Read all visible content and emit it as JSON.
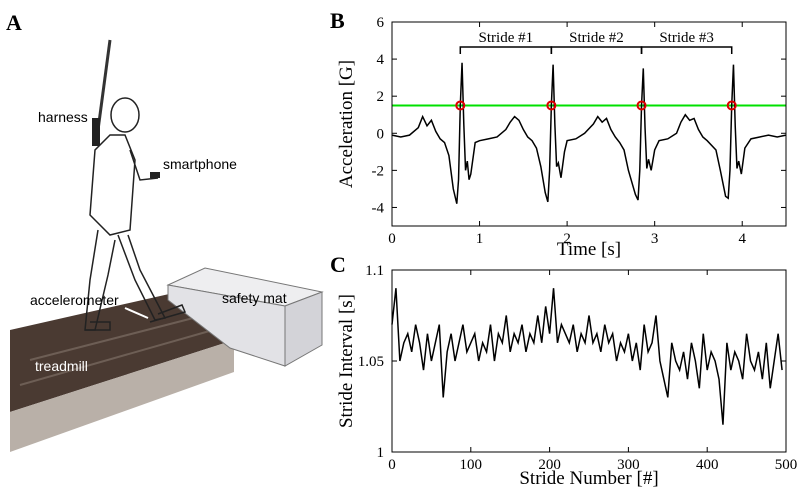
{
  "illustration": {
    "panel": "A",
    "labels": {
      "harness": "harness",
      "smartphone": "smartphone",
      "accelerometer": "accelerometer",
      "treadmill": "treadmill",
      "mat": "safety mat"
    }
  },
  "chart_data": [
    {
      "type": "line",
      "panel": "B",
      "xlabel": "Time [s]",
      "ylabel": "Acceleration [G]",
      "x": [
        0,
        0.1,
        0.2,
        0.3,
        0.35,
        0.4,
        0.45,
        0.5,
        0.55,
        0.6,
        0.65,
        0.7,
        0.74,
        0.76,
        0.78,
        0.8,
        0.82,
        0.84,
        0.86,
        0.88,
        0.9,
        0.95,
        1.0,
        1.1,
        1.2,
        1.3,
        1.35,
        1.4,
        1.45,
        1.5,
        1.55,
        1.6,
        1.65,
        1.7,
        1.75,
        1.78,
        1.8,
        1.82,
        1.84,
        1.86,
        1.88,
        1.9,
        1.93,
        1.97,
        2.0,
        2.1,
        2.2,
        2.3,
        2.35,
        2.4,
        2.45,
        2.5,
        2.55,
        2.6,
        2.65,
        2.7,
        2.78,
        2.81,
        2.83,
        2.85,
        2.87,
        2.89,
        2.91,
        2.93,
        2.96,
        3.0,
        3.05,
        3.15,
        3.25,
        3.3,
        3.35,
        3.4,
        3.45,
        3.5,
        3.55,
        3.6,
        3.7,
        3.75,
        3.81,
        3.84,
        3.86,
        3.88,
        3.9,
        3.92,
        3.94,
        3.96,
        3.99,
        4.03,
        4.1,
        4.2,
        4.3,
        4.4,
        4.5
      ],
      "series": [
        {
          "color": "#000000",
          "values": [
            -0.1,
            -0.2,
            -0.1,
            0.3,
            0.9,
            0.4,
            0.7,
            0.1,
            -0.3,
            -0.5,
            -1.2,
            -3.0,
            -3.8,
            -2.5,
            1.5,
            3.8,
            0.5,
            -2.0,
            -1.5,
            -2.5,
            -2.2,
            -0.5,
            -0.4,
            -0.3,
            -0.2,
            0.2,
            0.6,
            0.9,
            0.7,
            0.2,
            -0.2,
            -0.4,
            -0.8,
            -1.8,
            -3.2,
            -3.7,
            -2.0,
            1.5,
            3.7,
            0.5,
            -1.8,
            -1.6,
            -2.4,
            -1.0,
            -0.4,
            -0.3,
            0.0,
            0.5,
            0.9,
            0.6,
            0.8,
            0.2,
            -0.2,
            -0.5,
            -0.9,
            -2.0,
            -3.3,
            -3.6,
            -2.0,
            1.5,
            3.5,
            0.3,
            -1.9,
            -1.4,
            -2.0,
            -0.9,
            -0.4,
            -0.3,
            0.0,
            0.6,
            1.0,
            0.7,
            0.8,
            0.2,
            -0.2,
            -0.4,
            -0.9,
            -2.0,
            -3.4,
            -3.5,
            -2.0,
            1.5,
            3.7,
            0.4,
            -1.9,
            -1.5,
            -2.2,
            -0.8,
            -0.3,
            -0.2,
            -0.1,
            -0.2,
            -0.1
          ]
        }
      ],
      "threshold": {
        "value": 1.5,
        "color": "#00e000"
      },
      "markers": {
        "color": "#dd0000",
        "x": [
          0.78,
          1.82,
          2.85,
          3.88
        ]
      },
      "strides": [
        "Stride #1",
        "Stride #2",
        "Stride #3"
      ],
      "xlim": [
        0,
        4.5
      ],
      "ylim": [
        -5,
        6
      ],
      "xticks": [
        0,
        1,
        2,
        3,
        4
      ],
      "yticks": [
        -4,
        -2,
        0,
        2,
        4,
        6
      ]
    },
    {
      "type": "line",
      "panel": "C",
      "xlabel": "Stride Number [#]",
      "ylabel": "Stride Interval [s]",
      "x": [
        0,
        5,
        10,
        15,
        20,
        25,
        30,
        35,
        40,
        45,
        50,
        55,
        60,
        65,
        70,
        75,
        80,
        85,
        90,
        95,
        100,
        105,
        110,
        115,
        120,
        125,
        130,
        135,
        140,
        145,
        150,
        155,
        160,
        165,
        170,
        175,
        180,
        185,
        190,
        195,
        200,
        205,
        210,
        215,
        220,
        225,
        230,
        235,
        240,
        245,
        250,
        255,
        260,
        265,
        270,
        275,
        280,
        285,
        290,
        295,
        300,
        305,
        310,
        315,
        320,
        325,
        330,
        335,
        340,
        345,
        350,
        355,
        360,
        365,
        370,
        375,
        380,
        385,
        390,
        395,
        400,
        405,
        410,
        415,
        420,
        425,
        430,
        435,
        440,
        445,
        450,
        455,
        460,
        465,
        470,
        475,
        480,
        485,
        490,
        495
      ],
      "series": [
        {
          "color": "#000000",
          "values": [
            1.07,
            1.09,
            1.05,
            1.06,
            1.065,
            1.055,
            1.07,
            1.06,
            1.045,
            1.065,
            1.05,
            1.06,
            1.07,
            1.03,
            1.055,
            1.065,
            1.05,
            1.06,
            1.07,
            1.055,
            1.06,
            1.065,
            1.05,
            1.06,
            1.055,
            1.07,
            1.05,
            1.065,
            1.06,
            1.075,
            1.055,
            1.065,
            1.06,
            1.07,
            1.055,
            1.065,
            1.06,
            1.075,
            1.06,
            1.08,
            1.065,
            1.09,
            1.06,
            1.07,
            1.065,
            1.06,
            1.07,
            1.055,
            1.065,
            1.06,
            1.075,
            1.06,
            1.065,
            1.055,
            1.07,
            1.06,
            1.065,
            1.05,
            1.06,
            1.055,
            1.065,
            1.05,
            1.06,
            1.045,
            1.07,
            1.055,
            1.06,
            1.075,
            1.05,
            1.04,
            1.03,
            1.06,
            1.05,
            1.045,
            1.055,
            1.04,
            1.06,
            1.05,
            1.035,
            1.065,
            1.045,
            1.055,
            1.05,
            1.04,
            1.015,
            1.06,
            1.045,
            1.055,
            1.05,
            1.04,
            1.065,
            1.05,
            1.045,
            1.055,
            1.04,
            1.06,
            1.035,
            1.05,
            1.065,
            1.045
          ]
        }
      ],
      "xlim": [
        0,
        500
      ],
      "ylim": [
        1,
        1.1
      ],
      "xticks": [
        0,
        100,
        200,
        300,
        400,
        500
      ],
      "yticks": [
        1,
        1.05,
        1.1
      ]
    }
  ]
}
